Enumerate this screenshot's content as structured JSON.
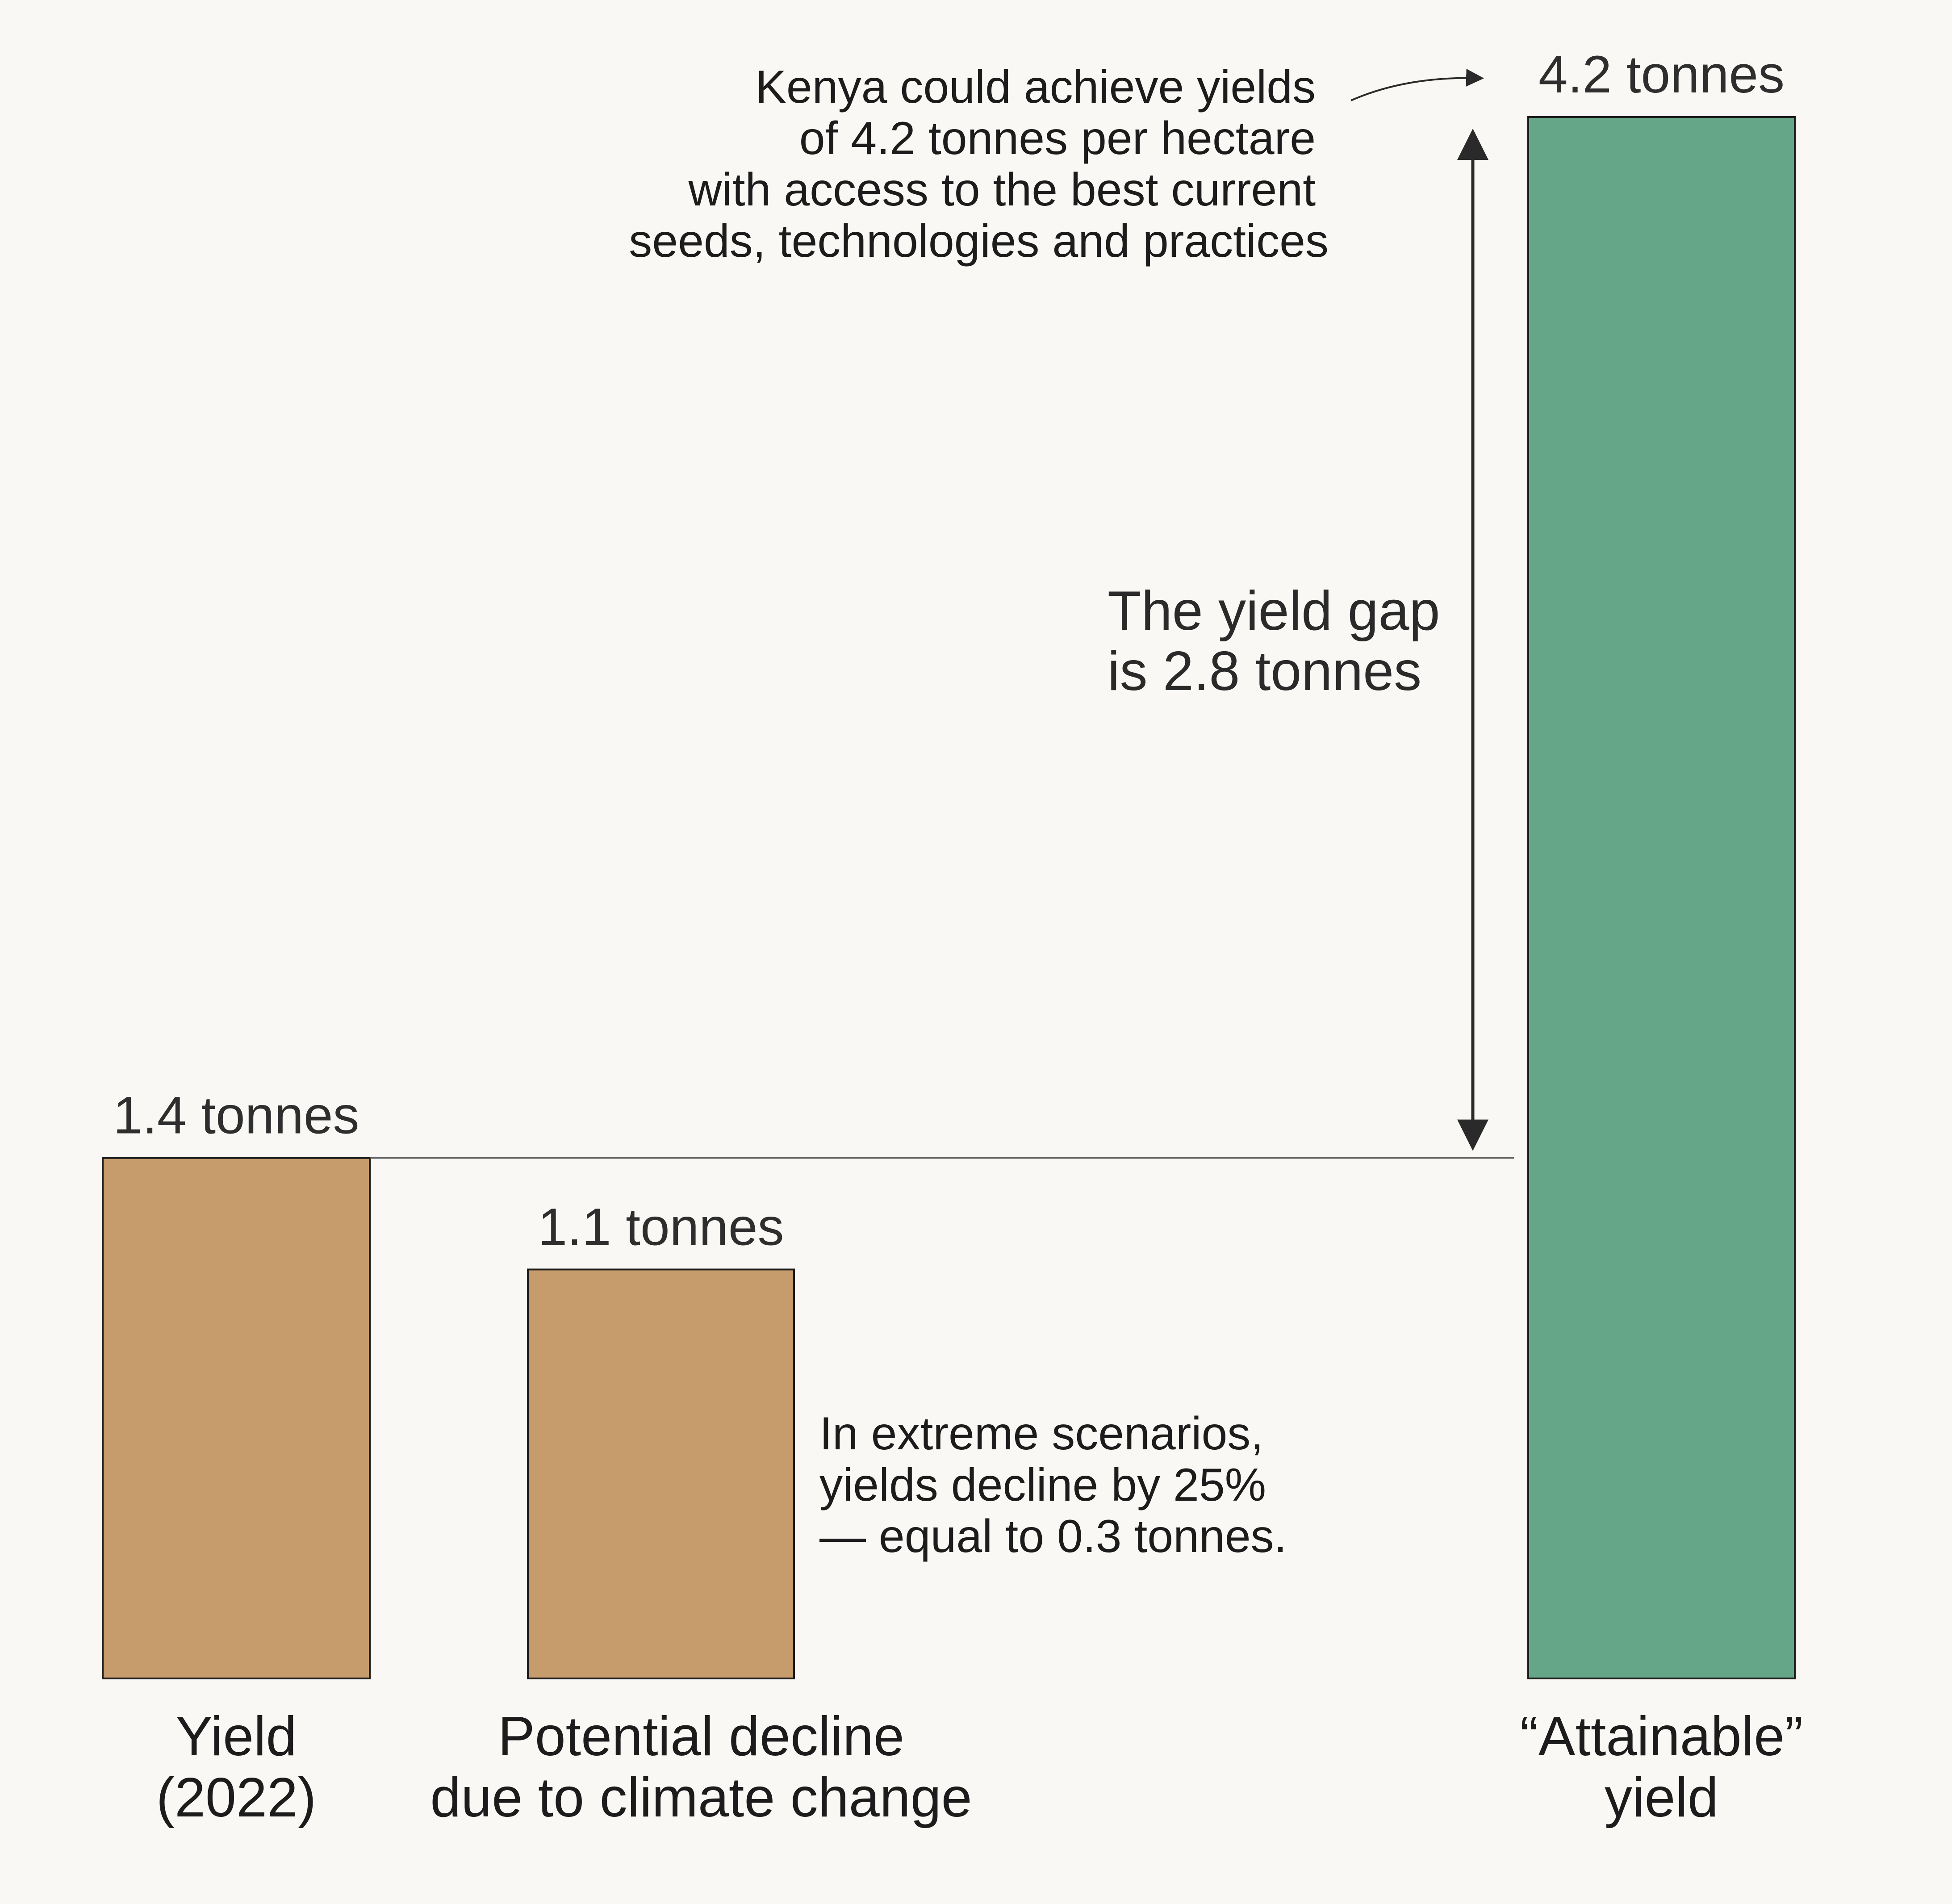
{
  "chart_data": {
    "type": "bar",
    "categories": [
      "Yield\n(2022)",
      "Potential decline\ndue to climate change",
      "“Attainable”\nyield"
    ],
    "values": [
      1.4,
      1.1,
      4.2
    ],
    "value_labels": [
      "1.4 tonnes",
      "1.1 tonnes",
      "4.2 tonnes"
    ],
    "title": "",
    "xlabel": "",
    "ylabel": "",
    "ylim": [
      0,
      4.2
    ],
    "grid": false,
    "legend": "none",
    "colors": [
      "#c69c6d",
      "#c69c6d",
      "#66a688"
    ],
    "annotations": {
      "attainable_note": [
        "Kenya could achieve yields",
        "of 4.2 tonnes per hectare",
        "with access to the best current",
        "seeds, technologies and practices"
      ],
      "gap_note": [
        "The yield gap",
        "is 2.8 tonnes"
      ],
      "gap_value": 2.8,
      "decline_note": [
        "In extreme scenarios,",
        "yields decline by 25%",
        "— equal to 0.3 tonnes."
      ]
    }
  }
}
